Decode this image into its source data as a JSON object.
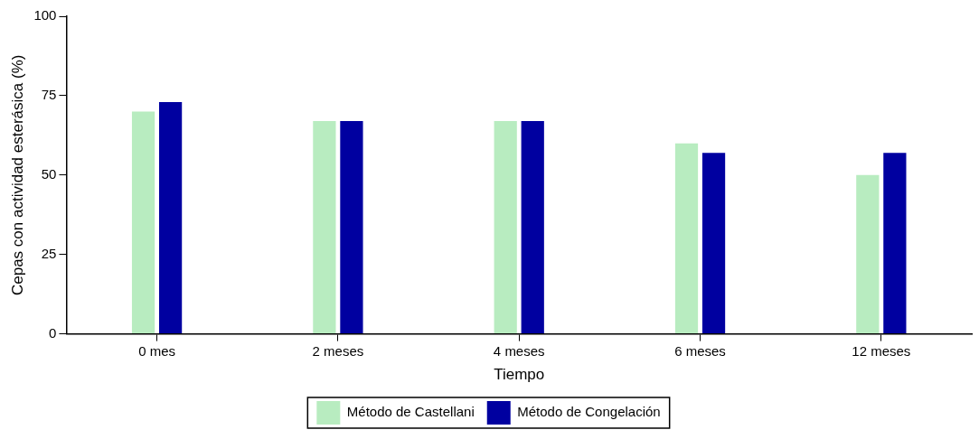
{
  "chart_data": {
    "type": "bar",
    "xlabel": "Tiempo",
    "ylabel": "Cepas con actividad esterásica (%)",
    "categories": [
      "0 mes",
      "2 meses",
      "4 meses",
      "6 meses",
      "12 meses"
    ],
    "series": [
      {
        "name": "Método de Castellani",
        "color": "#b8ecc0",
        "values": [
          70,
          67,
          67,
          60,
          50
        ]
      },
      {
        "name": "Método de Congelación",
        "color": "#0000a0",
        "values": [
          73,
          67,
          67,
          57,
          57
        ]
      }
    ],
    "ylim": [
      0,
      100
    ],
    "yticks": [
      0,
      25,
      50,
      75,
      100
    ],
    "grid": false,
    "legend": "bottom"
  }
}
